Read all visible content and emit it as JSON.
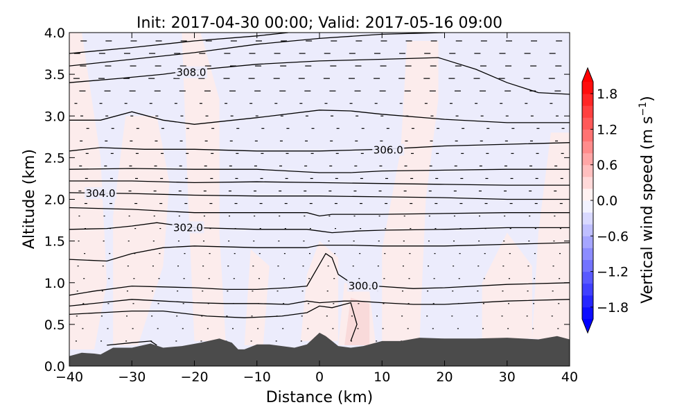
{
  "chart_data": {
    "type": "heatmap",
    "title": "Init: 2017-04-30 00:00; Valid: 2017-05-16 09:00",
    "xlabel": "Distance (km)",
    "ylabel": "Altitude (km)",
    "xlim": [
      -40,
      40
    ],
    "ylim": [
      0.0,
      4.0
    ],
    "x_ticks": [
      -40,
      -30,
      -20,
      -10,
      0,
      10,
      20,
      30,
      40
    ],
    "x_tick_labels": [
      "−40",
      "−30",
      "−20",
      "−10",
      "0",
      "10",
      "20",
      "30",
      "40"
    ],
    "y_ticks": [
      0.0,
      0.5,
      1.0,
      1.5,
      2.0,
      2.5,
      3.0,
      3.5,
      4.0
    ],
    "y_tick_labels": [
      "0.0",
      "0.5",
      "1.0",
      "1.5",
      "2.0",
      "2.5",
      "3.0",
      "3.5",
      "4.0"
    ],
    "colorbar": {
      "label_main": "Vertical wind speed (m s",
      "label_exp": "−1",
      "label_end": ")",
      "range": [
        -2.0,
        2.0
      ],
      "extend": "both",
      "colormap": "bwr",
      "ticks": [
        1.8,
        1.2,
        0.6,
        0.0,
        -0.6,
        -1.2,
        -1.8
      ],
      "tick_labels": [
        "1.8",
        "1.2",
        "0.6",
        "0.0",
        "−0.6",
        "−1.2",
        "−1.8"
      ]
    },
    "background_colors": {
      "weak_downdraft": "#ececfc",
      "weak_updraft": "#fcecec",
      "updraft": "#f9dada",
      "terrain": "#4b4b4b"
    },
    "terrain_height": [
      [
        -40,
        0.12
      ],
      [
        -38,
        0.16
      ],
      [
        -36,
        0.15
      ],
      [
        -35,
        0.14
      ],
      [
        -33,
        0.22
      ],
      [
        -30,
        0.22
      ],
      [
        -27,
        0.27
      ],
      [
        -25,
        0.22
      ],
      [
        -22,
        0.24
      ],
      [
        -19,
        0.28
      ],
      [
        -16,
        0.33
      ],
      [
        -14,
        0.28
      ],
      [
        -13,
        0.2
      ],
      [
        -12,
        0.2
      ],
      [
        -10,
        0.26
      ],
      [
        -8,
        0.26
      ],
      [
        -6,
        0.24
      ],
      [
        -4,
        0.22
      ],
      [
        -2,
        0.26
      ],
      [
        0,
        0.4
      ],
      [
        1,
        0.36
      ],
      [
        2,
        0.3
      ],
      [
        3,
        0.24
      ],
      [
        5,
        0.22
      ],
      [
        7,
        0.24
      ],
      [
        10,
        0.3
      ],
      [
        13,
        0.3
      ],
      [
        16,
        0.34
      ],
      [
        20,
        0.33
      ],
      [
        25,
        0.33
      ],
      [
        30,
        0.34
      ],
      [
        35,
        0.32
      ],
      [
        38,
        0.36
      ],
      [
        40,
        0.32
      ]
    ],
    "contours": [
      {
        "points": [
          [
            -34,
            0.25
          ],
          [
            -30,
            0.28
          ],
          [
            -27,
            0.3
          ],
          [
            -26,
            0.25
          ]
        ]
      },
      {
        "points": [
          [
            -40,
            0.62
          ],
          [
            -35,
            0.64
          ],
          [
            -30,
            0.66
          ],
          [
            -25,
            0.66
          ],
          [
            -18,
            0.6
          ],
          [
            -12,
            0.58
          ],
          [
            -6,
            0.6
          ],
          [
            -2,
            0.64
          ],
          [
            0,
            0.72
          ],
          [
            2,
            0.7
          ],
          [
            4,
            0.74
          ],
          [
            5,
            0.76
          ],
          [
            6,
            0.5
          ],
          [
            5,
            0.3
          ]
        ]
      },
      {
        "points": [
          [
            -40,
            0.72
          ],
          [
            -35,
            0.76
          ],
          [
            -30,
            0.8
          ],
          [
            -25,
            0.78
          ],
          [
            -20,
            0.76
          ],
          [
            -15,
            0.75
          ],
          [
            -10,
            0.75
          ],
          [
            -5,
            0.74
          ],
          [
            -2,
            0.78
          ],
          [
            0,
            0.76
          ],
          [
            2,
            0.77
          ],
          [
            4,
            0.78
          ],
          [
            6,
            0.78
          ],
          [
            10,
            0.76
          ],
          [
            15,
            0.74
          ],
          [
            20,
            0.74
          ],
          [
            30,
            0.78
          ],
          [
            40,
            0.8
          ]
        ]
      },
      {
        "points": [
          [
            -40,
            0.85
          ],
          [
            -36,
            0.9
          ],
          [
            -30,
            0.96
          ],
          [
            -25,
            0.95
          ],
          [
            -20,
            0.94
          ],
          [
            -15,
            0.92
          ],
          [
            -10,
            0.92
          ],
          [
            -5,
            0.94
          ],
          [
            -2,
            0.96
          ],
          [
            0,
            1.22
          ],
          [
            1,
            1.35
          ],
          [
            2,
            1.3
          ],
          [
            3,
            1.1
          ],
          [
            5,
            1.0
          ],
          [
            9,
            0.96
          ],
          [
            15,
            0.93
          ],
          [
            20,
            0.94
          ],
          [
            30,
            0.98
          ],
          [
            40,
            1.0
          ]
        ]
      },
      {
        "points": [
          [
            -40,
            1.28
          ],
          [
            -34,
            1.26
          ],
          [
            -30,
            1.35
          ],
          [
            -25,
            1.42
          ],
          [
            -20,
            1.44
          ],
          [
            -10,
            1.42
          ],
          [
            -2,
            1.42
          ],
          [
            0,
            1.45
          ],
          [
            5,
            1.45
          ],
          [
            10,
            1.44
          ],
          [
            20,
            1.44
          ],
          [
            30,
            1.46
          ],
          [
            40,
            1.48
          ]
        ]
      },
      {
        "points": [
          [
            -40,
            1.64
          ],
          [
            -34,
            1.65
          ],
          [
            -30,
            1.68
          ],
          [
            -26,
            1.72
          ],
          [
            -22,
            1.68
          ],
          [
            -20,
            1.66
          ],
          [
            -10,
            1.64
          ],
          [
            -2,
            1.64
          ],
          [
            0,
            1.62
          ],
          [
            2,
            1.6
          ],
          [
            6,
            1.62
          ],
          [
            10,
            1.63
          ],
          [
            20,
            1.64
          ],
          [
            30,
            1.66
          ],
          [
            40,
            1.66
          ]
        ]
      },
      {
        "points": [
          [
            -40,
            1.9
          ],
          [
            -30,
            1.88
          ],
          [
            -20,
            1.84
          ],
          [
            -10,
            1.84
          ],
          [
            -2,
            1.84
          ],
          [
            0,
            1.8
          ],
          [
            2,
            1.82
          ],
          [
            10,
            1.82
          ],
          [
            20,
            1.83
          ],
          [
            30,
            1.84
          ],
          [
            40,
            1.84
          ]
        ]
      },
      {
        "points": [
          [
            -40,
            2.08
          ],
          [
            -30,
            2.07
          ],
          [
            -20,
            2.05
          ],
          [
            -10,
            2.04
          ],
          [
            0,
            2.04
          ],
          [
            10,
            2.03
          ],
          [
            20,
            2.02
          ],
          [
            30,
            2.0
          ],
          [
            40,
            2.0
          ]
        ]
      },
      {
        "points": [
          [
            -40,
            2.22
          ],
          [
            -30,
            2.22
          ],
          [
            -20,
            2.2
          ],
          [
            -10,
            2.21
          ],
          [
            0,
            2.2
          ],
          [
            10,
            2.19
          ],
          [
            20,
            2.18
          ],
          [
            30,
            2.17
          ],
          [
            40,
            2.17
          ]
        ]
      },
      {
        "points": [
          [
            -40,
            2.36
          ],
          [
            -30,
            2.37
          ],
          [
            -20,
            2.36
          ],
          [
            -10,
            2.36
          ],
          [
            0,
            2.32
          ],
          [
            5,
            2.32
          ],
          [
            10,
            2.34
          ],
          [
            20,
            2.35
          ],
          [
            30,
            2.36
          ],
          [
            40,
            2.36
          ]
        ]
      },
      {
        "points": [
          [
            -40,
            2.58
          ],
          [
            -35,
            2.62
          ],
          [
            -28,
            2.6
          ],
          [
            -20,
            2.6
          ],
          [
            -10,
            2.58
          ],
          [
            0,
            2.58
          ],
          [
            10,
            2.6
          ],
          [
            20,
            2.64
          ],
          [
            30,
            2.66
          ],
          [
            40,
            2.68
          ]
        ]
      },
      {
        "points": [
          [
            -40,
            2.95
          ],
          [
            -35,
            2.95
          ],
          [
            -30,
            3.05
          ],
          [
            -25,
            2.95
          ],
          [
            -20,
            2.9
          ],
          [
            -10,
            2.98
          ],
          [
            0,
            3.07
          ],
          [
            5,
            3.06
          ],
          [
            10,
            3.02
          ],
          [
            20,
            2.96
          ],
          [
            30,
            2.92
          ],
          [
            40,
            2.92
          ]
        ]
      },
      {
        "points": [
          [
            -40,
            3.4
          ],
          [
            -32,
            3.45
          ],
          [
            -25,
            3.5
          ],
          [
            -20,
            3.55
          ],
          [
            -10,
            3.62
          ],
          [
            0,
            3.66
          ],
          [
            10,
            3.68
          ],
          [
            19,
            3.7
          ],
          [
            25,
            3.56
          ],
          [
            30,
            3.4
          ],
          [
            35,
            3.28
          ],
          [
            40,
            3.26
          ]
        ]
      },
      {
        "points": [
          [
            -40,
            3.6
          ],
          [
            -30,
            3.68
          ],
          [
            -20,
            3.76
          ],
          [
            -10,
            3.86
          ],
          [
            0,
            3.93
          ],
          [
            10,
            3.98
          ],
          [
            20,
            4.0
          ]
        ]
      },
      {
        "points": [
          [
            -40,
            3.75
          ],
          [
            -30,
            3.82
          ],
          [
            -20,
            3.9
          ],
          [
            -10,
            3.96
          ],
          [
            -5,
            4.0
          ]
        ]
      }
    ],
    "contour_labels": [
      {
        "text": "308.0",
        "x": -20.5,
        "y": 3.52
      },
      {
        "text": "306.0",
        "x": 11,
        "y": 2.59
      },
      {
        "text": "304.0",
        "x": -35,
        "y": 2.07
      },
      {
        "text": "302.0",
        "x": -21,
        "y": 1.66
      },
      {
        "text": "300.0",
        "x": 7,
        "y": 0.96
      }
    ]
  }
}
